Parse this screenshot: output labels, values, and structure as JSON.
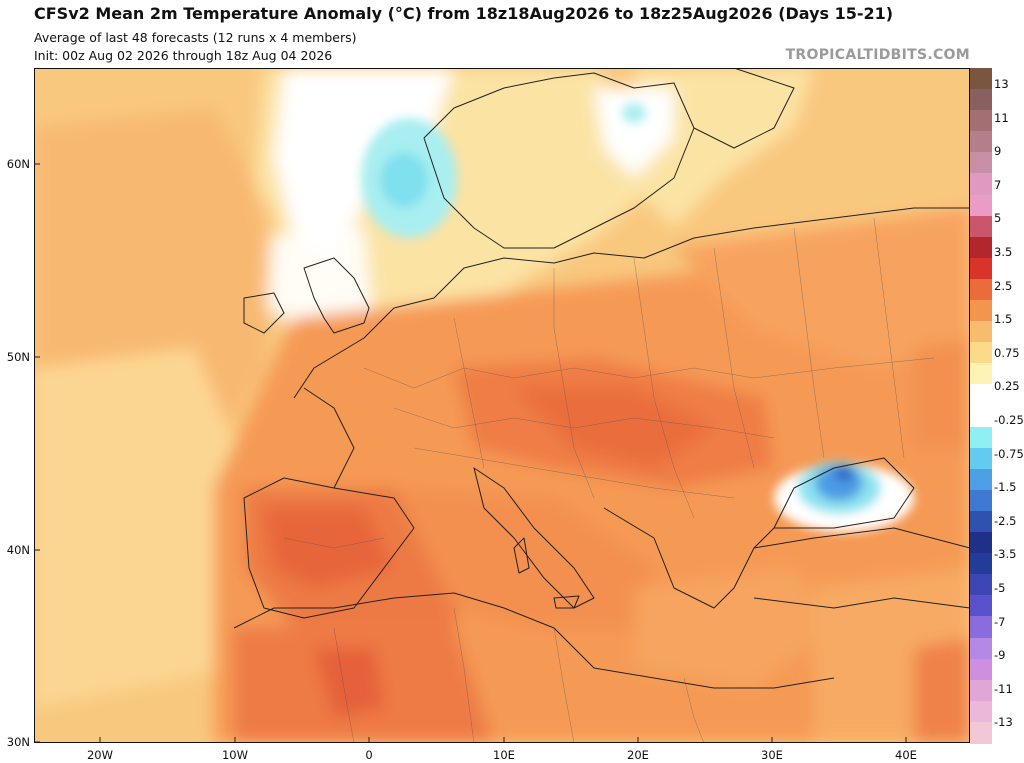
{
  "header": {
    "title": "CFSv2 Mean 2m Temperature Anomaly (°C) from 18z18Aug2026 to 18z25Aug2026 (Days 15-21)",
    "line1": "Average of last 48 forecasts (12 runs x 4 members)",
    "line2": "Init: 00z Aug 02 2026 through 18z Aug 04 2026",
    "brand": "TROPICALTIDBITS.COM"
  },
  "axes": {
    "lat_labels": [
      "60N",
      "50N",
      "40N",
      "30N"
    ],
    "lon_labels": [
      "20W",
      "10W",
      "0",
      "10E",
      "20E",
      "30E",
      "40E"
    ]
  },
  "colorbar": {
    "labels": [
      "13",
      "11",
      "9",
      "7",
      "5",
      "3.5",
      "2.5",
      "1.5",
      "0.75",
      "0.25",
      "-0.25",
      "-0.75",
      "-1.5",
      "-2.5",
      "-3.5",
      "-5",
      "-7",
      "-9",
      "-11",
      "-13"
    ],
    "colors": [
      "#7a5640",
      "#8a5f5f",
      "#a46f73",
      "#b37f8a",
      "#c98fa5",
      "#de9ac0",
      "#ea9cc4",
      "#c9566a",
      "#b2262c",
      "#d8342a",
      "#ec6b3a",
      "#f3954e",
      "#f8bc6e",
      "#fbdb8a",
      "#fef3b4",
      "#ffffff",
      "#ffffff",
      "#8ef0f2",
      "#62cbef",
      "#4da0e6",
      "#3f79d3",
      "#2f52b0",
      "#1f3088",
      "#243c99",
      "#3c46b5",
      "#5a52cc",
      "#8b6cdc",
      "#b488e6",
      "#cf8fe0",
      "#e0a6d6",
      "#eab8d8",
      "#f2c7d6"
    ]
  },
  "map": {
    "region": "Europe, North Africa and Middle East",
    "features": [
      "cold anomaly over North Sea",
      "cold anomaly over Black Sea",
      "warm anomaly across southern Europe and North Africa"
    ]
  }
}
